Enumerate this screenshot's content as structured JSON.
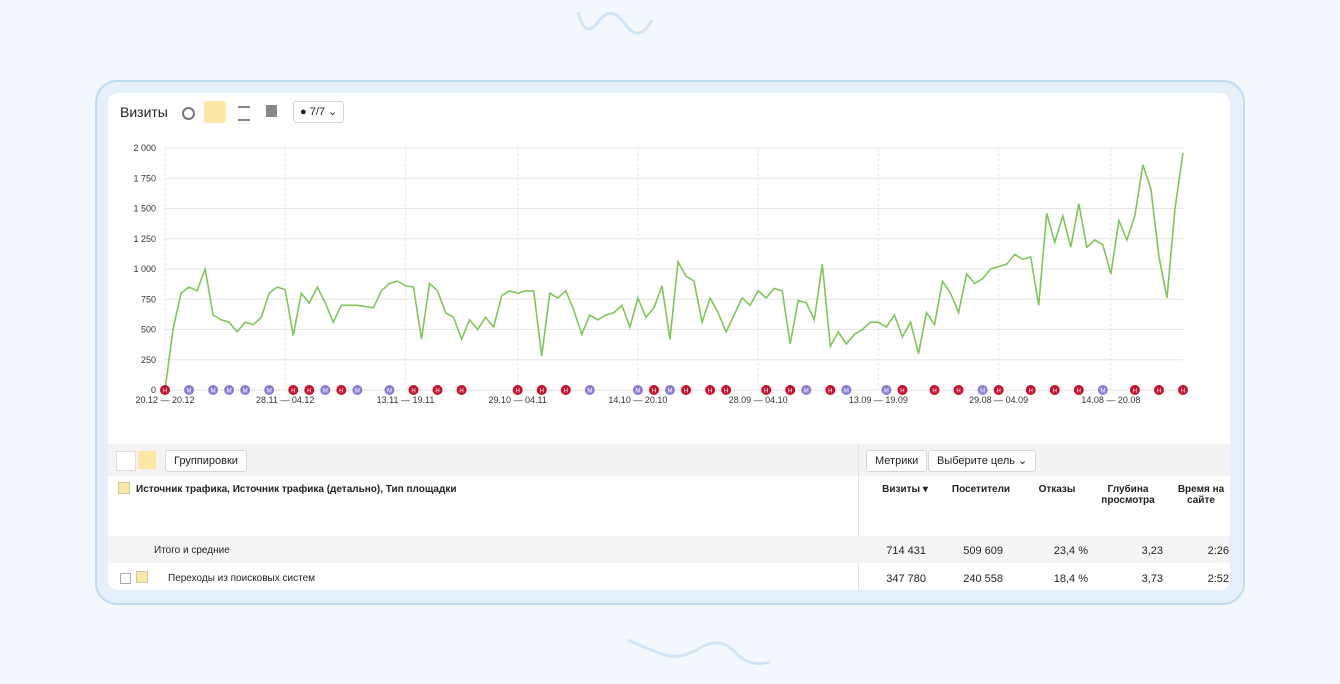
{
  "toolbar": {
    "title": "Визиты",
    "filter": "7/7"
  },
  "chart_data": {
    "type": "line",
    "color": "#82c55c",
    "grid": true,
    "values": [
      0,
      500,
      800,
      850,
      820,
      1000,
      620,
      580,
      560,
      480,
      560,
      540,
      600,
      800,
      850,
      830,
      450,
      800,
      720,
      850,
      720,
      560,
      700,
      700,
      700,
      690,
      680,
      820,
      880,
      900,
      860,
      850,
      420,
      880,
      820,
      640,
      600,
      420,
      580,
      500,
      600,
      520,
      780,
      820,
      800,
      820,
      820,
      280,
      800,
      760,
      820,
      660,
      460,
      620,
      580,
      620,
      640,
      700,
      520,
      760,
      600,
      680,
      860,
      420,
      1060,
      940,
      900,
      560,
      760,
      640,
      480,
      620,
      760,
      700,
      820,
      760,
      840,
      820,
      380,
      740,
      720,
      580,
      1040,
      360,
      480,
      380,
      460,
      500,
      560,
      560,
      520,
      620,
      440,
      560,
      300,
      640,
      540,
      900,
      800,
      640,
      960,
      880,
      920,
      1000,
      1020,
      1040,
      1120,
      1080,
      1100,
      700,
      1460,
      1220,
      1440,
      1180,
      1540,
      1180,
      1240,
      1200,
      960,
      1400,
      1240,
      1440,
      1860,
      1660,
      1100,
      760,
      1500,
      1960
    ],
    "xlim": [
      0,
      127
    ],
    "ylim": [
      0,
      2000
    ],
    "yticks": [
      0,
      250,
      500,
      750,
      {
        "value": 1000,
        "label": "1 000"
      },
      {
        "value": 1250,
        "label": "1 250"
      },
      {
        "value": 1500,
        "label": "1 500"
      },
      {
        "value": 1750,
        "label": "1 750"
      },
      {
        "value": 2000,
        "label": "2 000"
      }
    ],
    "xticks": [
      {
        "value": 0,
        "label": "20.12 — 20.12"
      },
      {
        "value": 15,
        "label": "28.11 — 04.12"
      },
      {
        "value": 30,
        "label": "13.11 — 19.11"
      },
      {
        "value": 44,
        "label": "29.10 — 04.11"
      },
      {
        "value": 59,
        "label": "14.10 — 20.10"
      },
      {
        "value": 74,
        "label": "28.09 — 04.10"
      },
      {
        "value": 89,
        "label": "13.09 — 19.09"
      },
      {
        "value": 104,
        "label": "29.08 — 04.09"
      },
      {
        "value": 118,
        "label": "14.08 — 20.08"
      }
    ],
    "annotations": [
      {
        "x": 0,
        "label": "Н",
        "color": "#c8102e"
      },
      {
        "x": 3,
        "label": "М",
        "color": "#8a7cd6"
      },
      {
        "x": 6,
        "label": "М",
        "color": "#8a7cd6"
      },
      {
        "x": 8,
        "label": "М",
        "color": "#8a7cd6"
      },
      {
        "x": 10,
        "label": "М",
        "color": "#8a7cd6"
      },
      {
        "x": 13,
        "label": "М",
        "color": "#8a7cd6"
      },
      {
        "x": 16,
        "label": "Н",
        "color": "#c8102e"
      },
      {
        "x": 18,
        "label": "Н",
        "color": "#c8102e"
      },
      {
        "x": 20,
        "label": "М",
        "color": "#8a7cd6"
      },
      {
        "x": 22,
        "label": "Н",
        "color": "#c8102e"
      },
      {
        "x": 24,
        "label": "М",
        "color": "#8a7cd6"
      },
      {
        "x": 28,
        "label": "М",
        "color": "#8a7cd6"
      },
      {
        "x": 31,
        "label": "Н",
        "color": "#c8102e"
      },
      {
        "x": 34,
        "label": "Н",
        "color": "#c8102e"
      },
      {
        "x": 37,
        "label": "Н",
        "color": "#c8102e"
      },
      {
        "x": 44,
        "label": "Н",
        "color": "#c8102e"
      },
      {
        "x": 47,
        "label": "Н",
        "color": "#c8102e"
      },
      {
        "x": 50,
        "label": "Н",
        "color": "#c8102e"
      },
      {
        "x": 53,
        "label": "М",
        "color": "#8a7cd6"
      },
      {
        "x": 59,
        "label": "М",
        "color": "#8a7cd6"
      },
      {
        "x": 61,
        "label": "Н",
        "color": "#c8102e"
      },
      {
        "x": 63,
        "label": "М",
        "color": "#8a7cd6"
      },
      {
        "x": 65,
        "label": "Н",
        "color": "#c8102e"
      },
      {
        "x": 68,
        "label": "Н",
        "color": "#c8102e"
      },
      {
        "x": 70,
        "label": "Н",
        "color": "#c8102e"
      },
      {
        "x": 75,
        "label": "Н",
        "color": "#c8102e"
      },
      {
        "x": 78,
        "label": "Н",
        "color": "#c8102e"
      },
      {
        "x": 80,
        "label": "М",
        "color": "#8a7cd6"
      },
      {
        "x": 83,
        "label": "Н",
        "color": "#c8102e"
      },
      {
        "x": 85,
        "label": "М",
        "color": "#8a7cd6"
      },
      {
        "x": 90,
        "label": "М",
        "color": "#8a7cd6"
      },
      {
        "x": 92,
        "label": "Н",
        "color": "#c8102e"
      },
      {
        "x": 96,
        "label": "Н",
        "color": "#c8102e"
      },
      {
        "x": 99,
        "label": "Н",
        "color": "#c8102e"
      },
      {
        "x": 102,
        "label": "М",
        "color": "#8a7cd6"
      },
      {
        "x": 104,
        "label": "Н",
        "color": "#c8102e"
      },
      {
        "x": 108,
        "label": "Н",
        "color": "#c8102e"
      },
      {
        "x": 111,
        "label": "Н",
        "color": "#c8102e"
      },
      {
        "x": 114,
        "label": "Н",
        "color": "#c8102e"
      },
      {
        "x": 117,
        "label": "М",
        "color": "#8a7cd6"
      },
      {
        "x": 121,
        "label": "Н",
        "color": "#c8102e"
      },
      {
        "x": 124,
        "label": "Н",
        "color": "#c8102e"
      },
      {
        "x": 127,
        "label": "Н",
        "color": "#c8102e"
      }
    ]
  },
  "table": {
    "grouping_button": "Группировки",
    "metrics_button": "Метрики",
    "goal_select": "Выберите цель",
    "dimension_header": "Источник трафика, Источник трафика (детально), Тип площадки",
    "columns": [
      "Визиты",
      "Посетители",
      "Отказы",
      "Глубина просмотра",
      "Время на сайте"
    ],
    "rows": [
      [
        "Итого и средние",
        "714 431",
        "509 609",
        "23,4 %",
        "3,23",
        "2:26"
      ],
      [
        "Переходы из поисковых систем",
        "347 780",
        "240 558",
        "18,4 %",
        "3,73",
        "2:52"
      ]
    ]
  }
}
